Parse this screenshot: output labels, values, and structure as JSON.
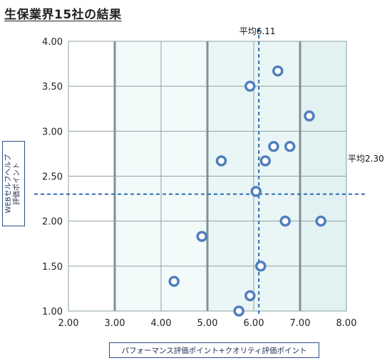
{
  "page": {
    "title": "生保業界15社の結果"
  },
  "chart_data": {
    "type": "scatter",
    "title": "生保業界15社の結果",
    "xlabel": "パフォーマンス評価ポイント+クオリティ評価ポイント",
    "ylabel": "WEBセルフヘルプ\n評価ポイント",
    "xlim": [
      2.0,
      8.0
    ],
    "ylim": [
      1.0,
      4.0
    ],
    "x_ticks": [
      "2.00",
      "3.00",
      "4.00",
      "5.00",
      "6.00",
      "7.00",
      "8.00"
    ],
    "y_ticks": [
      "1.00",
      "1.50",
      "2.00",
      "2.50",
      "3.00",
      "3.50",
      "4.00"
    ],
    "grid": true,
    "colors": {
      "marker": "#4f7fbd",
      "average_line": "#2f6db5",
      "band_light": "#f3fafa",
      "band_medium": "#e2f1f1",
      "grid": "#8fa0a3",
      "major_grid": "#7f9295"
    },
    "averages": {
      "x": 6.11,
      "y": 2.3,
      "x_label": "平均6.11",
      "y_label": "平均2.30"
    },
    "points": [
      {
        "x": 6.52,
        "y": 3.67
      },
      {
        "x": 5.92,
        "y": 3.5
      },
      {
        "x": 7.2,
        "y": 3.17
      },
      {
        "x": 6.43,
        "y": 2.83
      },
      {
        "x": 6.78,
        "y": 2.83
      },
      {
        "x": 5.3,
        "y": 2.67
      },
      {
        "x": 6.25,
        "y": 2.67
      },
      {
        "x": 6.05,
        "y": 2.33
      },
      {
        "x": 6.68,
        "y": 2.0
      },
      {
        "x": 7.45,
        "y": 2.0
      },
      {
        "x": 4.88,
        "y": 1.83
      },
      {
        "x": 6.15,
        "y": 1.5
      },
      {
        "x": 4.28,
        "y": 1.33
      },
      {
        "x": 5.92,
        "y": 1.17
      },
      {
        "x": 5.68,
        "y": 1.0
      }
    ]
  }
}
